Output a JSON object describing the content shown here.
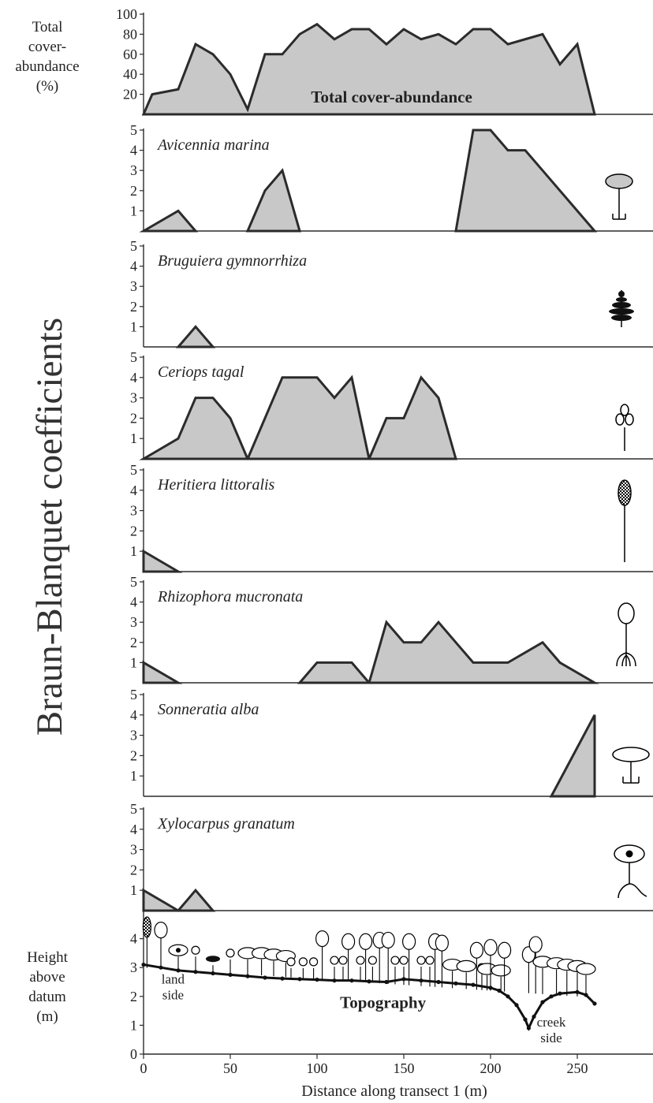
{
  "figure": {
    "y_title": "Braun-Blanquet coefficients",
    "x_title": "Distance along transect 1 (m)"
  },
  "chart_data": [
    {
      "type": "area",
      "panel": "total",
      "side_label": [
        "Total",
        "cover-",
        "abundance",
        "(%)"
      ],
      "title": "Total cover-abundance",
      "ylim": [
        0,
        100
      ],
      "yticks": [
        20,
        40,
        60,
        80,
        100
      ],
      "x": [
        0,
        5,
        20,
        30,
        40,
        50,
        60,
        70,
        80,
        90,
        100,
        110,
        120,
        130,
        140,
        150,
        160,
        170,
        180,
        190,
        200,
        210,
        220,
        230,
        240,
        250,
        260
      ],
      "values": [
        0,
        20,
        25,
        70,
        60,
        40,
        5,
        60,
        60,
        80,
        90,
        75,
        85,
        85,
        70,
        85,
        75,
        80,
        70,
        85,
        85,
        70,
        75,
        80,
        50,
        70,
        0
      ]
    },
    {
      "type": "area",
      "species": "Avicennia marina",
      "ylim": [
        0,
        5
      ],
      "yticks": [
        1,
        2,
        3,
        4,
        5
      ],
      "icon": "avicennia-icon",
      "polygons": [
        {
          "x": [
            0,
            20,
            30
          ],
          "y": [
            0,
            1,
            0
          ]
        },
        {
          "x": [
            60,
            70,
            80,
            90
          ],
          "y": [
            0,
            2,
            3,
            0
          ]
        },
        {
          "x": [
            180,
            190,
            200,
            210,
            220,
            230,
            260
          ],
          "y": [
            0,
            5,
            5,
            4,
            4,
            3,
            0
          ]
        }
      ]
    },
    {
      "type": "area",
      "species": "Bruguiera gymnorrhiza",
      "ylim": [
        0,
        5
      ],
      "yticks": [
        1,
        2,
        3,
        4,
        5
      ],
      "icon": "bruguiera-icon",
      "polygons": [
        {
          "x": [
            20,
            30,
            40
          ],
          "y": [
            0,
            1,
            0
          ]
        }
      ]
    },
    {
      "type": "area",
      "species": "Ceriops tagal",
      "ylim": [
        0,
        5
      ],
      "yticks": [
        1,
        2,
        3,
        4,
        5
      ],
      "icon": "ceriops-icon",
      "polygons": [
        {
          "x": [
            0,
            20,
            30,
            40,
            50,
            60
          ],
          "y": [
            0,
            1,
            3,
            3,
            2,
            0
          ]
        },
        {
          "x": [
            60,
            80,
            100,
            110,
            120,
            130
          ],
          "y": [
            0,
            4,
            4,
            3,
            4,
            0
          ]
        },
        {
          "x": [
            130,
            140,
            150,
            160,
            170,
            180
          ],
          "y": [
            0,
            2,
            2,
            4,
            3,
            0
          ]
        }
      ]
    },
    {
      "type": "area",
      "species": "Heritiera littoralis",
      "ylim": [
        0,
        5
      ],
      "yticks": [
        1,
        2,
        3,
        4,
        5
      ],
      "icon": "heritiera-icon",
      "polygons": [
        {
          "x": [
            0,
            0,
            20
          ],
          "y": [
            0,
            1,
            0
          ]
        }
      ]
    },
    {
      "type": "area",
      "species": "Rhizophora mucronata",
      "ylim": [
        0,
        5
      ],
      "yticks": [
        1,
        2,
        3,
        4,
        5
      ],
      "icon": "rhizophora-icon",
      "polygons": [
        {
          "x": [
            0,
            0,
            20
          ],
          "y": [
            0,
            1,
            0
          ]
        },
        {
          "x": [
            90,
            100,
            120,
            130
          ],
          "y": [
            0,
            1,
            1,
            0
          ]
        },
        {
          "x": [
            130,
            140,
            150,
            160,
            170,
            180,
            190,
            210,
            230,
            240,
            260
          ],
          "y": [
            0,
            3,
            2,
            2,
            3,
            2,
            1,
            1,
            2,
            1,
            0
          ]
        }
      ]
    },
    {
      "type": "area",
      "species": "Sonneratia alba",
      "ylim": [
        0,
        5
      ],
      "yticks": [
        1,
        2,
        3,
        4,
        5
      ],
      "icon": "sonneratia-icon",
      "polygons": [
        {
          "x": [
            235,
            260,
            260
          ],
          "y": [
            0,
            4,
            0
          ]
        }
      ]
    },
    {
      "type": "area",
      "species": "Xylocarpus granatum",
      "ylim": [
        0,
        5
      ],
      "yticks": [
        1,
        2,
        3,
        4,
        5
      ],
      "icon": "xylocarpus-icon",
      "polygons": [
        {
          "x": [
            0,
            0,
            20,
            30,
            40
          ],
          "y": [
            0,
            1,
            0,
            1,
            0
          ]
        }
      ]
    },
    {
      "type": "line",
      "panel": "topography",
      "side_label": [
        "Height",
        "above",
        "datum",
        "(m)"
      ],
      "title": "Topography",
      "annotations": [
        "land side",
        "creek side"
      ],
      "ylim": [
        0,
        5
      ],
      "yticks": [
        0,
        1,
        2,
        3,
        4
      ],
      "xlim": [
        0,
        300
      ],
      "xticks": [
        0,
        50,
        100,
        150,
        200,
        250
      ],
      "x": [
        0,
        10,
        20,
        30,
        40,
        50,
        60,
        70,
        80,
        90,
        100,
        110,
        120,
        130,
        140,
        150,
        160,
        170,
        180,
        190,
        200,
        205,
        210,
        215,
        220,
        222,
        225,
        230,
        235,
        240,
        250,
        255,
        260
      ],
      "values": [
        3.1,
        3.0,
        2.9,
        2.85,
        2.8,
        2.75,
        2.7,
        2.65,
        2.62,
        2.6,
        2.58,
        2.55,
        2.55,
        2.52,
        2.5,
        2.6,
        2.55,
        2.5,
        2.45,
        2.4,
        2.3,
        2.2,
        2.0,
        1.7,
        1.2,
        0.9,
        1.3,
        1.8,
        2.0,
        2.1,
        2.15,
        2.05,
        1.75
      ]
    }
  ]
}
